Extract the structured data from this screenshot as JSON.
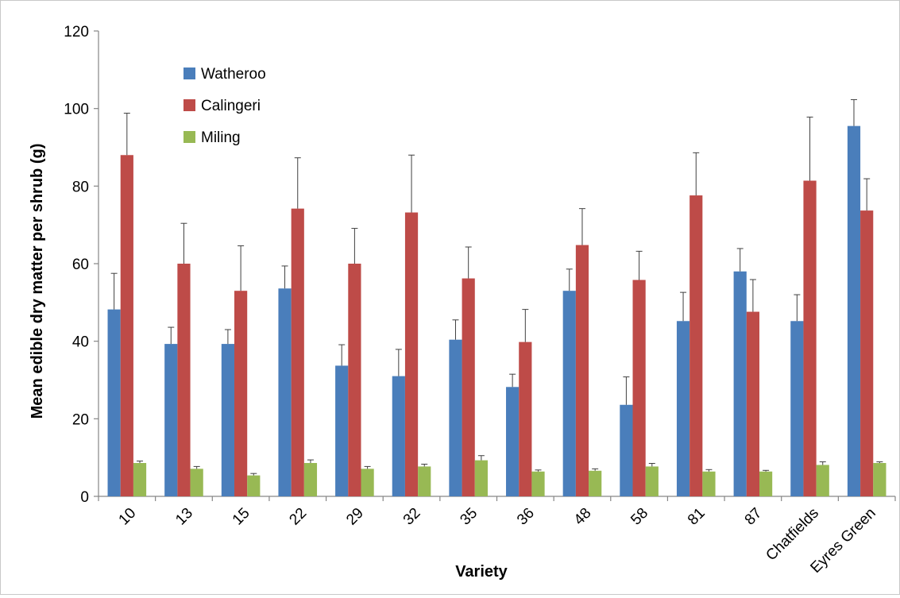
{
  "chart_data": {
    "type": "bar",
    "title": "",
    "xlabel": "Variety",
    "ylabel": "Mean edible dry matter per shrub (g)",
    "ylim": [
      0,
      120
    ],
    "yticks": [
      0,
      20,
      40,
      60,
      80,
      100,
      120
    ],
    "grid": false,
    "legend_position": "top-left",
    "categories": [
      "10",
      "13",
      "15",
      "22",
      "29",
      "32",
      "35",
      "36",
      "48",
      "58",
      "81",
      "87",
      "Chatfields",
      "Eyres Green"
    ],
    "series": [
      {
        "name": "Watheroo",
        "color": "#4a7ebb",
        "values": [
          48.2,
          39.3,
          39.3,
          53.6,
          33.7,
          31.0,
          40.4,
          28.2,
          53.0,
          23.6,
          45.2,
          58.0,
          45.2,
          95.5
        ],
        "errors": [
          9.3,
          4.3,
          3.7,
          5.8,
          5.4,
          6.9,
          5.1,
          3.3,
          5.6,
          7.2,
          7.4,
          5.9,
          6.8,
          6.8
        ]
      },
      {
        "name": "Calingeri",
        "color": "#be4b48",
        "values": [
          88.0,
          60.0,
          53.0,
          74.2,
          60.0,
          73.2,
          56.2,
          39.8,
          64.8,
          55.8,
          77.6,
          47.6,
          81.4,
          73.7
        ],
        "errors": [
          10.8,
          10.4,
          11.6,
          13.1,
          9.1,
          14.8,
          8.1,
          8.4,
          9.4,
          7.4,
          11.0,
          8.3,
          16.4,
          8.2
        ]
      },
      {
        "name": "Miling",
        "color": "#98b954",
        "values": [
          8.6,
          7.1,
          5.4,
          8.6,
          7.1,
          7.7,
          9.3,
          6.4,
          6.6,
          7.7,
          6.4,
          6.4,
          8.1,
          8.6
        ],
        "errors": [
          0.5,
          0.6,
          0.5,
          0.8,
          0.6,
          0.6,
          1.2,
          0.4,
          0.5,
          0.8,
          0.5,
          0.3,
          0.8,
          0.3
        ]
      }
    ]
  }
}
